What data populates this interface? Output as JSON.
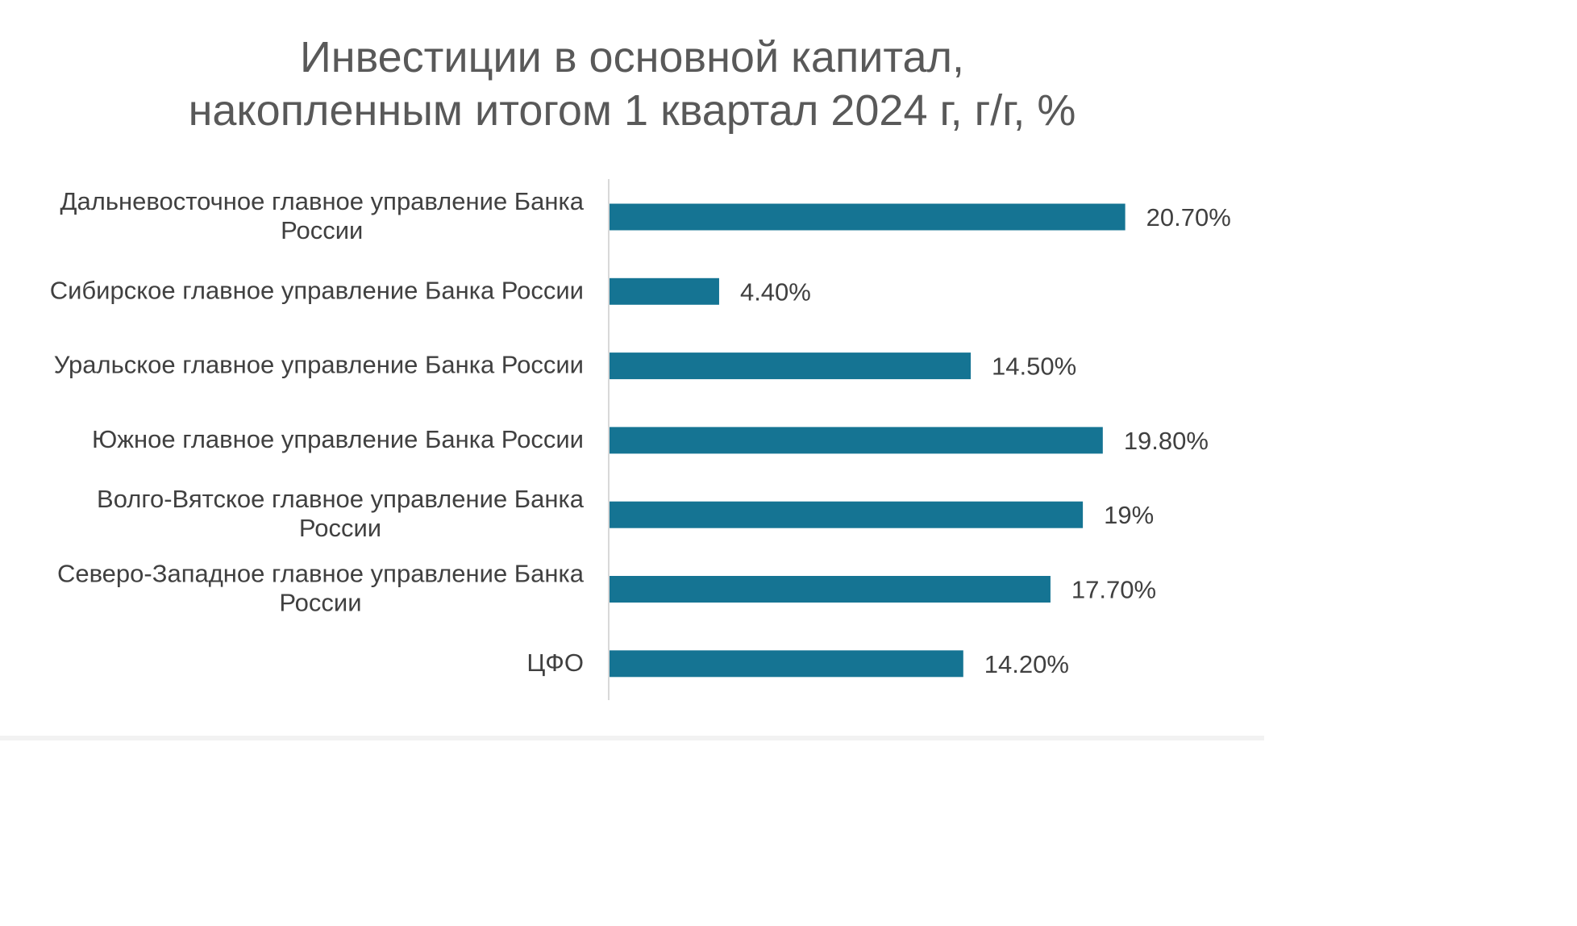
{
  "chart_data": {
    "type": "bar",
    "orientation": "horizontal",
    "title": [
      "Инвестиции в основной капитал,",
      "накопленным итогом 1 квартал 2024 г, г/г, %"
    ],
    "xlabel": "",
    "ylabel": "",
    "grid": false,
    "legend": "none",
    "bar_color": "#157493",
    "xlim": [
      0,
      23
    ],
    "categories": [
      "Дальневосточное главное управление Банка России",
      "Сибирское главное управление Банка России",
      "Уральское главное управление Банка России",
      "Южное главное управление Банка России",
      "Волго-Вятское главное управление Банка России",
      "Северо-Западное главное управление Банка России",
      "ЦФО"
    ],
    "category_lines": [
      [
        "Дальневосточное главное управление Банка",
        "России"
      ],
      [
        "Сибирское главное управление Банка России"
      ],
      [
        "Уральское главное управление Банка России"
      ],
      [
        "Южное главное управление Банка России"
      ],
      [
        "Волго-Вятское главное управление Банка",
        "России"
      ],
      [
        "Северо-Западное главное управление Банка",
        "России"
      ],
      [
        "ЦФО"
      ]
    ],
    "values": [
      20.7,
      4.4,
      14.5,
      19.8,
      19.0,
      17.7,
      14.2
    ],
    "data_labels": [
      "20.70%",
      "4.40%",
      "14.50%",
      "19.80%",
      "19%",
      "17.70%",
      "14.20%"
    ]
  }
}
